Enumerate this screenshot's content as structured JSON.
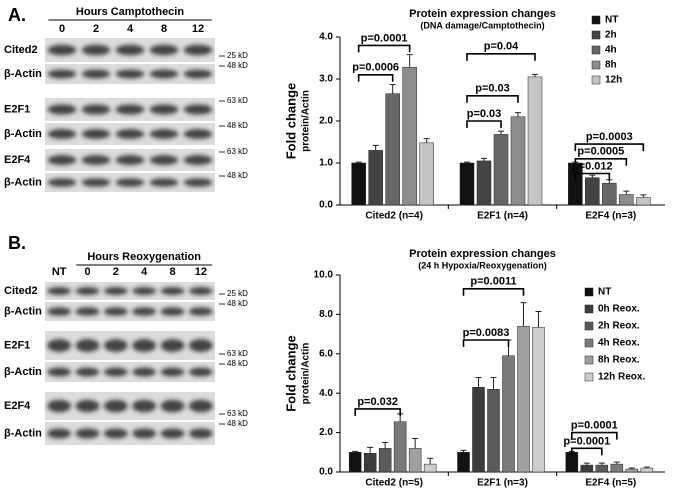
{
  "panels": [
    {
      "label": "A.",
      "blot": {
        "header": "Hours Camptothecin",
        "lanes": [
          "0",
          "2",
          "4",
          "8",
          "12"
        ],
        "rows": [
          {
            "label": "Cited2",
            "markers": [
              "25 kD",
              "48 kD"
            ]
          },
          {
            "label": "β-Actin",
            "markers": []
          },
          {
            "label": "E2F1",
            "markers": [
              "63 kD"
            ]
          },
          {
            "label": "β-Actin",
            "markers": [
              "48 kD"
            ]
          },
          {
            "label": "E2F4",
            "markers": [
              "63 kD"
            ]
          },
          {
            "label": "β-Actin",
            "markers": [
              "48 kD"
            ]
          }
        ]
      }
    },
    {
      "label": "B.",
      "blot": {
        "header": "Hours Reoxygenation",
        "lanes": [
          "NT",
          "0",
          "2",
          "4",
          "8",
          "12"
        ],
        "rows": [
          {
            "label": "Cited2",
            "markers": [
              "25 kD",
              "48 kD"
            ]
          },
          {
            "label": "β-Actin",
            "markers": []
          },
          {
            "label": "E2F1",
            "markers": [
              "63 kD",
              "48 kD"
            ]
          },
          {
            "label": "β-Actin",
            "markers": []
          },
          {
            "label": "E2F4",
            "markers": [
              "63 kD",
              "48 kD"
            ]
          },
          {
            "label": "β-Actin",
            "markers": []
          }
        ]
      }
    }
  ],
  "chart_data": [
    {
      "type": "bar",
      "title": "Protein expression changes",
      "subtitle": "(DNA damage/Camptothecin)",
      "y_label": "Fold change",
      "y_sublabel": "protein/Actin",
      "categories": [
        "Cited2 (n=4)",
        "E2F1 (n=4)",
        "E2F4 (n=3)"
      ],
      "ylim": [
        0,
        4
      ],
      "yticks": [
        {
          "value": 0,
          "label": "0.0"
        },
        {
          "value": 1,
          "label": "1.0"
        },
        {
          "value": 2,
          "label": "2.0"
        },
        {
          "value": 3,
          "label": "3.0"
        },
        {
          "value": 4,
          "label": "4.0"
        }
      ],
      "series": [
        {
          "name": "NT",
          "color": "#111111",
          "values": [
            1.0,
            1.0,
            1.0
          ],
          "errors": [
            0.02,
            0.02,
            0.02
          ]
        },
        {
          "name": "2h",
          "color": "#444444",
          "values": [
            1.3,
            1.05,
            0.65
          ],
          "errors": [
            0.12,
            0.06,
            0.06
          ]
        },
        {
          "name": "4h",
          "color": "#676767",
          "values": [
            2.65,
            1.68,
            0.52
          ],
          "errors": [
            0.22,
            0.08,
            0.08
          ]
        },
        {
          "name": "8h",
          "color": "#8c8c8c",
          "values": [
            3.28,
            2.1,
            0.25
          ],
          "errors": [
            0.3,
            0.1,
            0.08
          ]
        },
        {
          "name": "12h",
          "color": "#c4c4c4",
          "values": [
            1.48,
            3.05,
            0.18
          ],
          "errors": [
            0.1,
            0.06,
            0.06
          ]
        }
      ],
      "annotations": [
        {
          "text": "p=0.0001",
          "category": "Cited2 (n=4)",
          "from": "NT",
          "to": "8h",
          "y": 3.8
        },
        {
          "text": "p=0.0006",
          "category": "Cited2 (n=4)",
          "from": "NT",
          "to": "4h",
          "y": 3.1
        },
        {
          "text": "p=0.04",
          "category": "E2F1 (n=4)",
          "from": "NT",
          "to": "12h",
          "y": 3.6
        },
        {
          "text": "p=0.03",
          "category": "E2F1 (n=4)",
          "from": "NT",
          "to": "8h",
          "y": 2.6
        },
        {
          "text": "p=0.03",
          "category": "E2F1 (n=4)",
          "from": "NT",
          "to": "4h",
          "y": 2.0
        },
        {
          "text": "p=0.0003",
          "category": "E2F4 (n=3)",
          "from": "NT",
          "to": "12h",
          "y": 1.45
        },
        {
          "text": "p=0.0005",
          "category": "E2F4 (n=3)",
          "from": "NT",
          "to": "8h",
          "y": 1.1
        },
        {
          "text": "p=0.012",
          "category": "E2F4 (n=3)",
          "from": "NT",
          "to": "4h",
          "y": 0.75
        }
      ]
    },
    {
      "type": "bar",
      "title": "Protein expression changes",
      "subtitle": "(24 h Hypoxia/Reoxygenation)",
      "y_label": "Fold change",
      "y_sublabel": "protein/Actin",
      "categories": [
        "Cited2 (n=5)",
        "E2F1 (n=3)",
        "E2F4 (n=5)"
      ],
      "ylim": [
        0,
        10
      ],
      "yticks": [
        {
          "value": 0,
          "label": "0.0"
        },
        {
          "value": 2,
          "label": "2.0"
        },
        {
          "value": 4,
          "label": "4.0"
        },
        {
          "value": 6,
          "label": "6.0"
        },
        {
          "value": 8,
          "label": "8.0"
        },
        {
          "value": 10,
          "label": "10.0"
        }
      ],
      "series": [
        {
          "name": "NT",
          "color": "#111111",
          "values": [
            1.0,
            1.0,
            1.0
          ],
          "errors": [
            0.05,
            0.1,
            0.05
          ]
        },
        {
          "name": "0h Reox.",
          "color": "#3c3c3c",
          "values": [
            0.95,
            4.3,
            0.35
          ],
          "errors": [
            0.3,
            0.5,
            0.1
          ]
        },
        {
          "name": "2h Reox.",
          "color": "#5a5a5a",
          "values": [
            1.2,
            4.2,
            0.35
          ],
          "errors": [
            0.3,
            0.6,
            0.1
          ]
        },
        {
          "name": "4h Reox.",
          "color": "#7a7a7a",
          "values": [
            2.55,
            5.9,
            0.4
          ],
          "errors": [
            0.4,
            0.8,
            0.1
          ]
        },
        {
          "name": "8h Reox.",
          "color": "#a0a0a0",
          "values": [
            1.2,
            7.4,
            0.15
          ],
          "errors": [
            0.5,
            1.2,
            0.05
          ]
        },
        {
          "name": "12h Reox.",
          "color": "#cdcdcd",
          "values": [
            0.4,
            7.35,
            0.2
          ],
          "errors": [
            0.3,
            0.8,
            0.05
          ]
        }
      ],
      "annotations": [
        {
          "text": "p=0.032",
          "category": "Cited2 (n=5)",
          "from": "NT",
          "to": "4h Reox.",
          "y": 3.2
        },
        {
          "text": "p=0.0011",
          "category": "E2F1 (n=3)",
          "from": "NT",
          "to": "8h Reox.",
          "y": 9.3
        },
        {
          "text": "p=0.0083",
          "category": "E2F1 (n=3)",
          "from": "NT",
          "to": "4h Reox.",
          "y": 6.7
        },
        {
          "text": "p=0.0001",
          "category": "E2F4 (n=5)",
          "from": "NT",
          "to": "4h Reox.",
          "y": 2.0
        },
        {
          "text": "p=0.0001",
          "category": "E2F4 (n=5)",
          "from": "NT",
          "to": "2h Reox.",
          "y": 1.2
        }
      ]
    }
  ]
}
